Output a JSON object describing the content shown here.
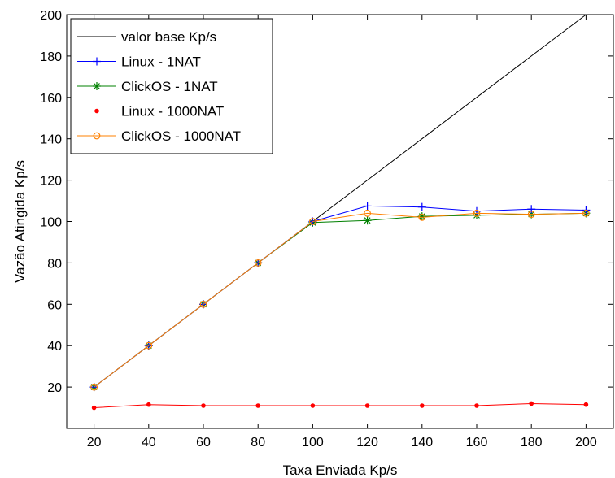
{
  "chart_data": {
    "type": "line",
    "title": "",
    "xlabel": "Taxa Enviada Kp/s",
    "ylabel": "Vazão Atingida Kp/s",
    "xlim": [
      10,
      210
    ],
    "ylim": [
      0,
      200
    ],
    "xticks": [
      20,
      40,
      60,
      80,
      100,
      120,
      140,
      160,
      180,
      200
    ],
    "yticks": [
      20,
      40,
      60,
      80,
      100,
      120,
      140,
      160,
      180,
      200
    ],
    "grid": false,
    "legend_position": "top-left",
    "series": [
      {
        "name": "valor base Kp/s",
        "color": "#000000",
        "marker": "none",
        "x": [
          20,
          40,
          60,
          80,
          100,
          120,
          140,
          160,
          180,
          200
        ],
        "y": [
          20,
          40,
          60,
          80,
          100,
          120,
          140,
          160,
          180,
          200
        ]
      },
      {
        "name": "Linux - 1NAT",
        "color": "#0000ff",
        "marker": "plus",
        "x": [
          20,
          40,
          60,
          80,
          100,
          120,
          140,
          160,
          180,
          200
        ],
        "y": [
          20,
          40,
          60,
          80,
          100,
          107.5,
          107,
          105,
          106,
          105.5
        ]
      },
      {
        "name": "ClickOS - 1NAT",
        "color": "#008000",
        "marker": "star",
        "x": [
          20,
          40,
          60,
          80,
          100,
          120,
          140,
          160,
          180,
          200
        ],
        "y": [
          20,
          40,
          60,
          80,
          99.5,
          100.5,
          102.5,
          103,
          103.5,
          104
        ]
      },
      {
        "name": "Linux - 1000NAT",
        "color": "#ff0000",
        "marker": "dot",
        "x": [
          20,
          40,
          60,
          80,
          100,
          120,
          140,
          160,
          180,
          200
        ],
        "y": [
          10,
          11.5,
          11,
          11,
          11,
          11,
          11,
          11,
          12,
          11.5
        ]
      },
      {
        "name": "ClickOS - 1000NAT",
        "color": "#ff8000",
        "marker": "circle",
        "x": [
          20,
          40,
          60,
          80,
          100,
          120,
          140,
          160,
          180,
          200
        ],
        "y": [
          20,
          40,
          60,
          80,
          100,
          104,
          102,
          104,
          103.5,
          104
        ]
      }
    ]
  }
}
